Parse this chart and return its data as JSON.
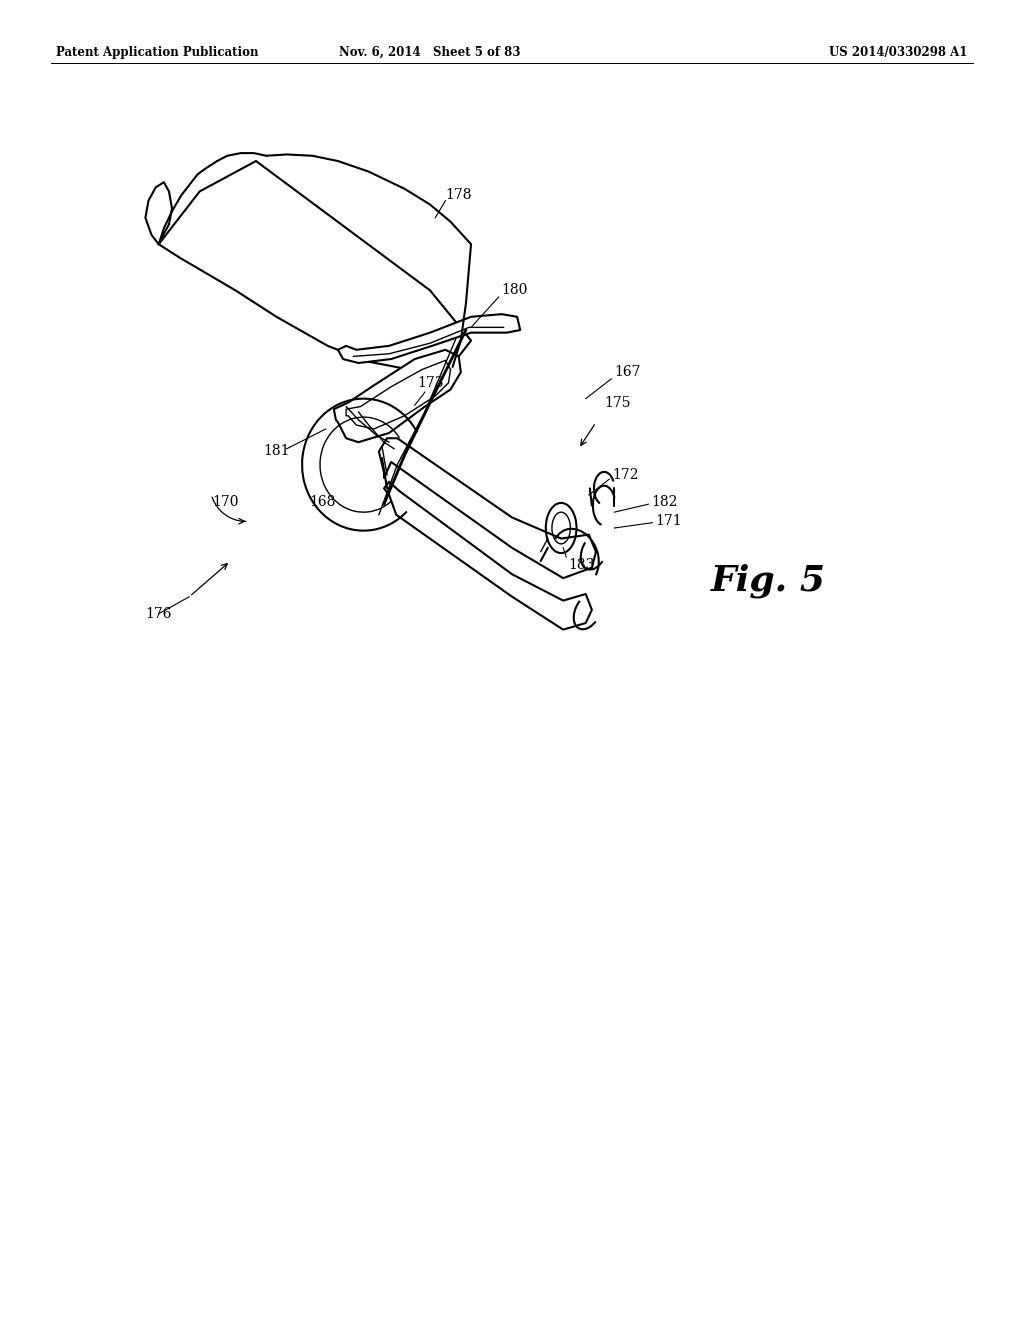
{
  "bg_color": "#ffffff",
  "header_left": "Patent Application Publication",
  "header_center": "Nov. 6, 2014   Sheet 5 of 83",
  "header_right": "US 2014/0330298 A1",
  "fig_label": "Fig. 5",
  "line_color": "#000000",
  "text_color": "#000000",
  "lw_thin": 1.0,
  "lw_med": 1.5,
  "lw_thick": 2.0,
  "font_header": 8.5,
  "font_label": 10,
  "font_fig": 26
}
